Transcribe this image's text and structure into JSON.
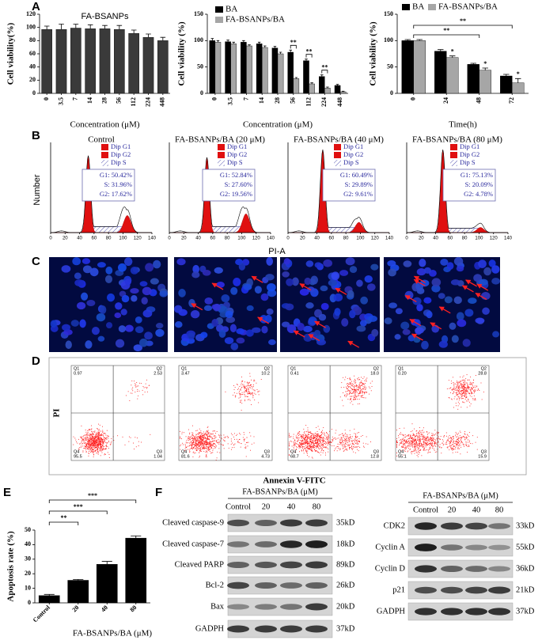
{
  "panel_labels": [
    "A",
    "B",
    "C",
    "D",
    "E",
    "F"
  ],
  "chart_data": [
    {
      "type": "bar",
      "title": "FA-BSANPs",
      "xlabel": "Concentration (μM)",
      "ylabel": "Cell viability(%)",
      "categories": [
        "0",
        "3.5",
        "7",
        "14",
        "28",
        "56",
        "112",
        "224",
        "448"
      ],
      "values": [
        97,
        97,
        99,
        98,
        98,
        97,
        91,
        85,
        80
      ],
      "errors": [
        5,
        8,
        6,
        6,
        5,
        6,
        5,
        5,
        5
      ],
      "color": "#3a3a3a",
      "ylim": [
        0,
        120
      ],
      "yticks": [
        0,
        20,
        40,
        60,
        80,
        100,
        120
      ]
    },
    {
      "type": "bar",
      "xlabel": "Concentration (μM)",
      "ylabel": "Cell viability (%)",
      "categories": [
        "0",
        "3.5",
        "7",
        "14",
        "28",
        "56",
        "112",
        "224",
        "448"
      ],
      "series": [
        {
          "name": "BA",
          "color": "#000000",
          "values": [
            100,
            98,
            97,
            94,
            86,
            78,
            62,
            32,
            15
          ],
          "errors": [
            4,
            3,
            3,
            3,
            3,
            4,
            3,
            3,
            2
          ]
        },
        {
          "name": "FA-BSANPs/BA",
          "color": "#a6a6a6",
          "values": [
            97,
            94,
            90,
            87,
            75,
            28,
            18,
            10,
            3
          ],
          "errors": [
            3,
            3,
            2,
            3,
            3,
            2,
            2,
            2,
            1
          ]
        }
      ],
      "ylim": [
        0,
        150
      ],
      "yticks": [
        0,
        50,
        100,
        150
      ],
      "legend": "upper left",
      "annotations": [
        "**",
        "**",
        "**"
      ]
    },
    {
      "type": "bar",
      "xlabel": "Time(h)",
      "ylabel": "Cell viability (%)",
      "categories": [
        "0",
        "24",
        "48",
        "72"
      ],
      "series": [
        {
          "name": "BA",
          "color": "#000000",
          "values": [
            100,
            80,
            55,
            33
          ],
          "errors": [
            2,
            3,
            2,
            3
          ]
        },
        {
          "name": "FA-BSANPs/BA",
          "color": "#a6a6a6",
          "values": [
            100,
            68,
            44,
            20
          ],
          "errors": [
            2,
            3,
            4,
            8
          ]
        }
      ],
      "ylim": [
        0,
        150
      ],
      "yticks": [
        0,
        50,
        100,
        150
      ],
      "legend": "top",
      "annotations": [
        "**",
        "**",
        "*",
        "*",
        "*"
      ]
    },
    {
      "type": "bar",
      "xlabel": "FA-BSANPs/BA (μM)",
      "ylabel": "Apoptosis rate (%)",
      "categories": [
        "Control",
        "20",
        "40",
        "80"
      ],
      "values": [
        5,
        15.5,
        26.5,
        44.5
      ],
      "errors": [
        0.8,
        0.6,
        2,
        1.5
      ],
      "color": "#000000",
      "ylim": [
        0,
        50
      ],
      "yticks": [
        0,
        10,
        20,
        30,
        40,
        50
      ],
      "annotations": [
        "***",
        "***",
        "**"
      ]
    }
  ],
  "cell_cycle": {
    "xlabel": "PI-A",
    "ylabel": "Number",
    "xticks": [
      0,
      20,
      40,
      60,
      80,
      100,
      120,
      140
    ],
    "legend": [
      "Dip G1",
      "Dip G2",
      "Dip S"
    ],
    "plots": [
      {
        "title": "Control",
        "stats": [
          "G1: 50.42%",
          "S: 31.96%",
          "G2: 17.62%"
        ]
      },
      {
        "title": "FA-BSANPs/BA (20 μM)",
        "stats": [
          "G1: 52.84%",
          "S: 27.60%",
          "G2: 19.56%"
        ]
      },
      {
        "title": "FA-BSANPs/BA (40 μM)",
        "stats": [
          "G1: 60.49%",
          "S: 29.89%",
          "G2: 9.61%"
        ]
      },
      {
        "title": "FA-BSANPs/BA (80 μM)",
        "stats": [
          "G1: 75.13%",
          "S: 20.09%",
          "G2: 4.78%"
        ]
      }
    ]
  },
  "flow_cytometry": {
    "ylabel": "PI",
    "xlabel": "Annexin V-FITC",
    "plots": [
      {
        "quadrants": [
          {
            "name": "Q1",
            "value": "0.97"
          },
          {
            "name": "Q2",
            "value": "2.53"
          },
          {
            "name": "Q3",
            "value": "1.04"
          },
          {
            "name": "Q4",
            "value": "95.5"
          }
        ]
      },
      {
        "quadrants": [
          {
            "name": "Q1",
            "value": "3.47"
          },
          {
            "name": "Q2",
            "value": "10.2"
          },
          {
            "name": "Q3",
            "value": "4.73"
          },
          {
            "name": "Q4",
            "value": "81.6"
          }
        ]
      },
      {
        "quadrants": [
          {
            "name": "Q1",
            "value": "0.41"
          },
          {
            "name": "Q2",
            "value": "18.0"
          },
          {
            "name": "Q3",
            "value": "12.8"
          },
          {
            "name": "Q4",
            "value": "68.7"
          }
        ]
      },
      {
        "quadrants": [
          {
            "name": "Q1",
            "value": "0.20"
          },
          {
            "name": "Q2",
            "value": "28.8"
          },
          {
            "name": "Q3",
            "value": "15.9"
          },
          {
            "name": "Q4",
            "value": "55.1"
          }
        ]
      }
    ]
  },
  "western_blot": [
    {
      "header": "FA-BSANPs/BA (μM)",
      "lanes": [
        "Control",
        "20",
        "40",
        "80"
      ],
      "rows": [
        {
          "label": "Cleaved caspase-9",
          "size": "35kD"
        },
        {
          "label": "Cleaved caspase-7",
          "size": "18kD"
        },
        {
          "label": "Cleaved PARP",
          "size": "89kD"
        },
        {
          "label": "Bcl-2",
          "size": "26kD"
        },
        {
          "label": "Bax",
          "size": "20kD"
        },
        {
          "label": "GADPH",
          "size": "37kD"
        }
      ]
    },
    {
      "header": "FA-BSANPs/BA (μM)",
      "lanes": [
        "Control",
        "20",
        "40",
        "80"
      ],
      "rows": [
        {
          "label": "CDK2",
          "size": "33kD"
        },
        {
          "label": "Cyclin A",
          "size": "55kD"
        },
        {
          "label": "Cyclin D",
          "size": "36kD"
        },
        {
          "label": "p21",
          "size": "21kD"
        },
        {
          "label": "GADPH",
          "size": "37kD"
        }
      ]
    }
  ]
}
